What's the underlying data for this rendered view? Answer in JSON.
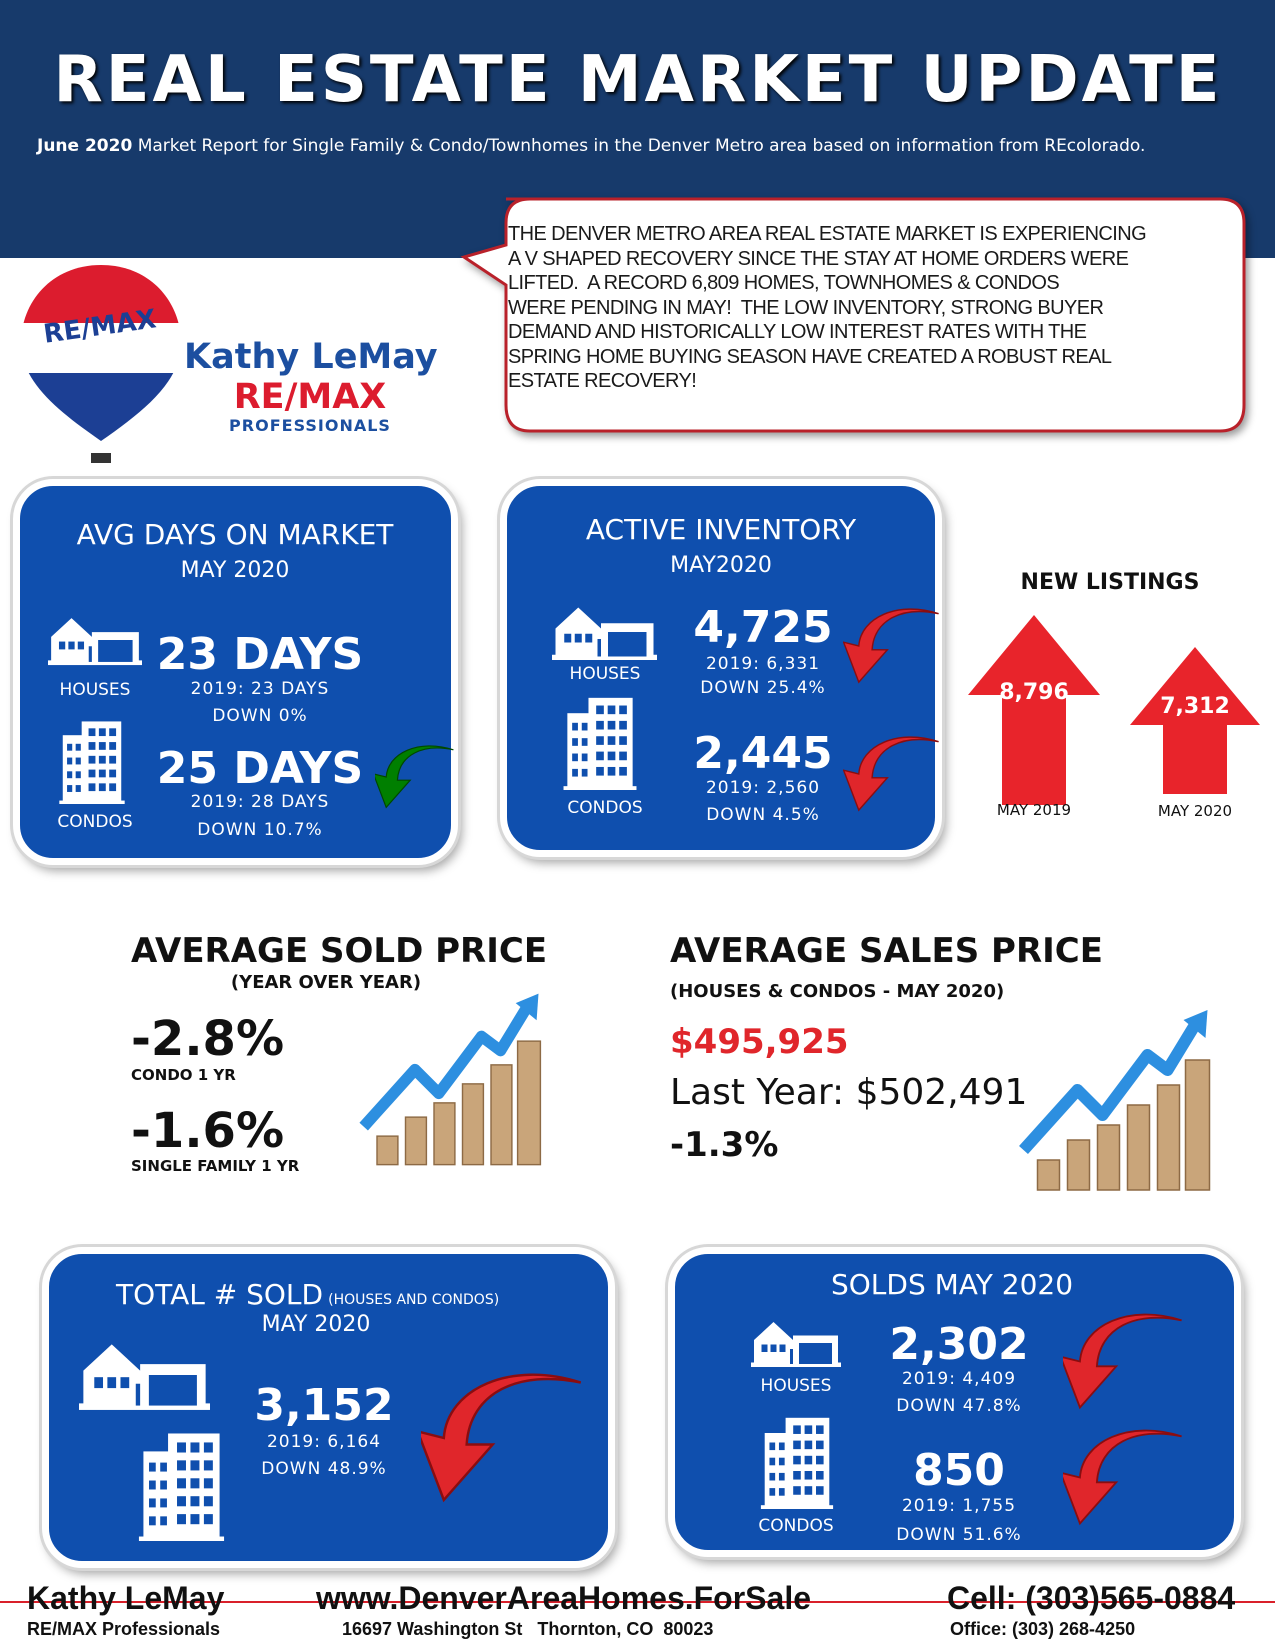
{
  "header": {
    "title": "REAL ESTATE MARKET UPDATE",
    "subtitle_lead": "June 2020",
    "subtitle": "Market Report for Single Family & Condo/Townhomes in the Denver Metro area based on information from REcolorado."
  },
  "callout": {
    "lines": [
      "THE DENVER METRO AREA REAL ESTATE MARKET IS EXPERIENCING",
      "A V SHAPED RECOVERY SINCE THE STAY AT HOME ORDERS WERE",
      "LIFTED.  A RECORD 6,809 HOMES, TOWNHOMES & CONDOS",
      "WERE PENDING IN MAY!  THE LOW INVENTORY, STRONG BUYER",
      "DEMAND AND HISTORICALLY LOW INTEREST RATES WITH THE",
      "SPRING HOME BUYING SEASON HAVE CREATED A ROBUST REAL",
      "ESTATE RECOVERY!"
    ]
  },
  "logo": {
    "balloon": "RE/MAX",
    "agent": "Kathy LeMay",
    "brand": "RE/MAX",
    "office": "PROFESSIONALS"
  },
  "days_on_market": {
    "title": "AVG DAYS ON MARKET",
    "period": "MAY 2020",
    "houses": {
      "label": "HOUSES",
      "value": "23 DAYS",
      "prior": "2019: 23 DAYS",
      "change": "DOWN 0%"
    },
    "condos": {
      "label": "CONDOS",
      "value": "25 DAYS",
      "prior": "2019: 28 DAYS",
      "change": "DOWN 10.7%"
    }
  },
  "active_inventory": {
    "title": "ACTIVE INVENTORY",
    "period": "MAY2020",
    "houses": {
      "label": "HOUSES",
      "value": "4,725",
      "prior": "2019: 6,331",
      "change": "DOWN 25.4%"
    },
    "condos": {
      "label": "CONDOS",
      "value": "2,445",
      "prior": "2019: 2,560",
      "change": "DOWN 4.5%"
    }
  },
  "new_listings": {
    "title": "NEW LISTINGS",
    "items": [
      {
        "label": "MAY 2019",
        "value": "8,796"
      },
      {
        "label": "MAY 2020",
        "value": "7,312"
      }
    ]
  },
  "avg_sold_price": {
    "title": "AVERAGE SOLD PRICE",
    "subtitle": "(YEAR OVER YEAR)",
    "items": [
      {
        "value": "-2.8%",
        "label": "CONDO 1 YR"
      },
      {
        "value": "-1.6%",
        "label": "SINGLE FAMILY 1 YR"
      }
    ]
  },
  "avg_sales_price": {
    "title": "AVERAGE SALES PRICE",
    "subtitle": "(HOUSES & CONDOS - MAY 2020)",
    "value": "$495,925",
    "last_year": "Last Year: $502,491",
    "change": "-1.3%"
  },
  "total_sold": {
    "title": "TOTAL # SOLD",
    "note": "(HOUSES AND CONDOS)",
    "period": "MAY 2020",
    "value": "3,152",
    "prior": "2019: 6,164",
    "change": "DOWN 48.9%"
  },
  "solds": {
    "title": "SOLDS MAY 2020",
    "houses": {
      "label": "HOUSES",
      "value": "2,302",
      "prior": "2019: 4,409",
      "change": "DOWN 47.8%"
    },
    "condos": {
      "label": "CONDOS",
      "value": "850",
      "prior": "2019: 1,755",
      "change": "DOWN 51.6%"
    }
  },
  "footer": {
    "name": "Kathy LeMay",
    "website": "www.DenverAreaHomes.ForSale",
    "cell": "Cell: (303)565-0884",
    "office_name": "RE/MAX Professionals",
    "address": "16697 Washington St   Thornton, CO  80023",
    "office_phone": "Office: (303) 268-4250"
  }
}
